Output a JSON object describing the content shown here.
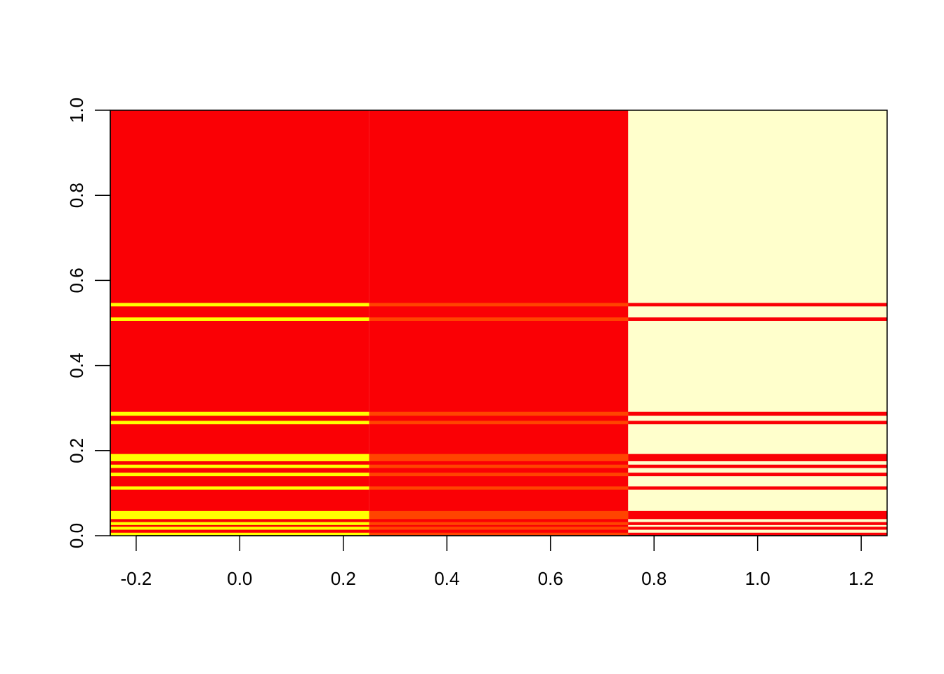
{
  "chart_data": {
    "type": "heatmap",
    "title": "",
    "xlabel": "",
    "ylabel": "",
    "xlim": [
      -0.25,
      1.25
    ],
    "ylim": [
      0.0,
      1.0
    ],
    "x_ticks": [
      "-0.2",
      "0.0",
      "0.2",
      "0.4",
      "0.6",
      "0.8",
      "1.0",
      "1.2"
    ],
    "y_ticks": [
      "0.0",
      "0.2",
      "0.4",
      "0.6",
      "0.8",
      "1.0"
    ],
    "columns": [
      {
        "x_range": [
          -0.25,
          0.25
        ]
      },
      {
        "x_range": [
          0.25,
          0.75
        ]
      },
      {
        "x_range": [
          0.75,
          1.25
        ]
      }
    ],
    "base_colors": [
      "#fa0005",
      "#fa0005",
      "#ffffcc"
    ],
    "stripe_colors": [
      "#ffff00",
      "#ff4400",
      "#fa0005"
    ],
    "stripes": [
      {
        "y_range": [
          0.0,
          0.007
        ]
      },
      {
        "y_range": [
          0.014,
          0.021
        ]
      },
      {
        "y_range": [
          0.025,
          0.032
        ]
      },
      {
        "y_range": [
          0.039,
          0.058
        ]
      },
      {
        "y_range": [
          0.108,
          0.116
        ]
      },
      {
        "y_range": [
          0.14,
          0.148
        ]
      },
      {
        "y_range": [
          0.159,
          0.167
        ]
      },
      {
        "y_range": [
          0.175,
          0.192
        ]
      },
      {
        "y_range": [
          0.262,
          0.27
        ]
      },
      {
        "y_range": [
          0.282,
          0.291
        ]
      },
      {
        "y_range": [
          0.505,
          0.513
        ]
      },
      {
        "y_range": [
          0.539,
          0.547
        ]
      }
    ],
    "grid": false,
    "legend": "none"
  }
}
